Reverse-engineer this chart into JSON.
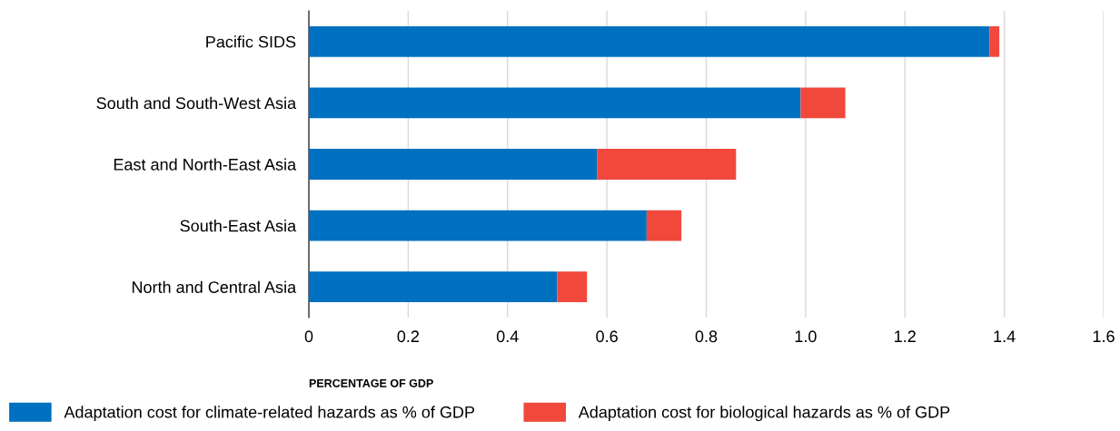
{
  "chart_data": {
    "type": "bar",
    "orientation": "horizontal",
    "stacked": true,
    "categories": [
      "Pacific SIDS",
      "South and South-West Asia",
      "East and North-East Asia",
      "South-East Asia",
      "North and Central Asia"
    ],
    "series": [
      {
        "name": "Adaptation cost for climate-related hazards as % of GDP",
        "color": "#0070c0",
        "values": [
          1.37,
          0.99,
          0.58,
          0.68,
          0.5
        ]
      },
      {
        "name": "Adaptation cost for biological hazards as % of GDP",
        "color": "#f0483b",
        "values": [
          0.02,
          0.09,
          0.28,
          0.07,
          0.06
        ]
      }
    ],
    "xlabel": "PERCENTAGE OF GDP",
    "xlim": [
      0,
      1.6
    ],
    "xticks": [
      0,
      {
        "value": 0.2,
        "label": "0.2"
      },
      {
        "value": 0.4,
        "label": "0.4"
      },
      {
        "value": 0.6,
        "label": "0.6"
      },
      {
        "value": 0.8,
        "label": "0.8"
      },
      {
        "value": 1.0,
        "label": "1.0"
      },
      {
        "value": 1.2,
        "label": "1.2"
      },
      {
        "value": 1.4,
        "label": "1.4"
      },
      {
        "value": 1.6,
        "label": "1.6"
      }
    ],
    "grid": "x",
    "legend": "bottom"
  }
}
